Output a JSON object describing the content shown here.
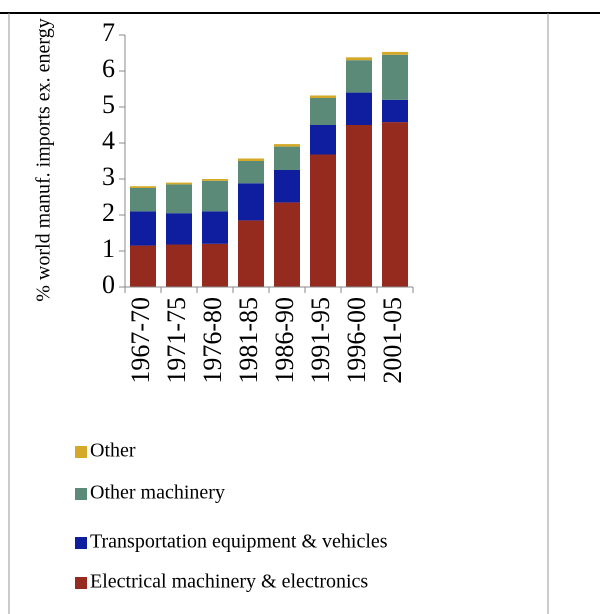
{
  "chart_data": {
    "type": "stacked_bar",
    "y_label": "% world manuf. imports ex. energy",
    "categories": [
      "1967-70",
      "1971-75",
      "1976-80",
      "1981-85",
      "1986-90",
      "1991-95",
      "1996-00",
      "2001-05"
    ],
    "series": [
      {
        "name": "Electrical machinery & electronics",
        "color": "#952a1f",
        "values": [
          1.15,
          1.18,
          1.2,
          1.85,
          2.35,
          3.68,
          4.5,
          4.58
        ]
      },
      {
        "name": "Transportation equipment & vehicles",
        "color": "#0e1e9e",
        "values": [
          0.95,
          0.87,
          0.9,
          1.03,
          0.9,
          0.82,
          0.9,
          0.62
        ]
      },
      {
        "name": "Other machinery",
        "color": "#5b8a78",
        "values": [
          0.65,
          0.8,
          0.85,
          0.62,
          0.65,
          0.75,
          0.9,
          1.25
        ]
      },
      {
        "name": "Other",
        "color": "#d4a92a",
        "values": [
          0.05,
          0.05,
          0.05,
          0.07,
          0.07,
          0.07,
          0.08,
          0.08
        ]
      }
    ],
    "ylim": [
      0,
      7
    ],
    "yticks": [
      0,
      1,
      2,
      3,
      4,
      5,
      6,
      7
    ]
  }
}
